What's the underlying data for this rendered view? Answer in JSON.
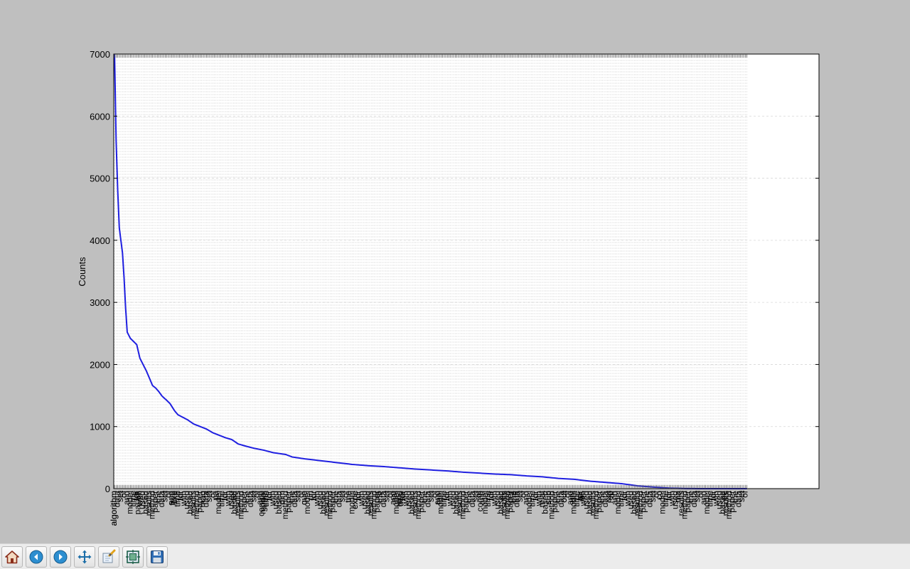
{
  "toolbar": {
    "buttons": [
      {
        "name": "home-button",
        "icon": "home-icon"
      },
      {
        "name": "back-button",
        "icon": "back-arrow-icon"
      },
      {
        "name": "forward-button",
        "icon": "forward-arrow-icon"
      },
      {
        "name": "pan-button",
        "icon": "pan-arrows-icon"
      },
      {
        "name": "zoom-button",
        "icon": "zoom-rect-icon"
      },
      {
        "name": "configure-subplots-button",
        "icon": "subplots-icon"
      },
      {
        "name": "save-button",
        "icon": "save-disk-icon"
      }
    ]
  },
  "colors": {
    "line": "#1f1fe0",
    "figure_background": "#bfbfbf",
    "axes_background": "#ffffff",
    "grid": "#d8d8d8"
  },
  "chart_data": {
    "type": "line",
    "xlabel": "",
    "ylabel": "Counts",
    "ylim": [
      0,
      7000
    ],
    "yticks": [
      0,
      1000,
      2000,
      3000,
      4000,
      5000,
      6000,
      7000
    ],
    "grid": true,
    "n_categories": 400,
    "x_extent_categories": 445,
    "visible_tick_labels": [
      {
        "index": 0,
        "text": "algorithm"
      },
      {
        "index": 15,
        "text": "paradi"
      },
      {
        "index": 37,
        "text": "freq"
      },
      {
        "index": 38,
        "text": "like"
      },
      {
        "index": 56,
        "text": "mag"
      },
      {
        "index": 64,
        "text": "pa"
      },
      {
        "index": 75,
        "text": "ref"
      },
      {
        "index": 93,
        "text": "compo"
      },
      {
        "index": 95,
        "text": "subm"
      },
      {
        "index": 106,
        "text": "dim"
      },
      {
        "index": 120,
        "text": "que"
      },
      {
        "index": 124,
        "text": "un"
      },
      {
        "index": 148,
        "text": "the"
      },
      {
        "index": 152,
        "text": "expe"
      },
      {
        "index": 167,
        "text": "lo"
      },
      {
        "index": 177,
        "text": "cat"
      },
      {
        "index": 181,
        "text": "desi"
      },
      {
        "index": 205,
        "text": "feel"
      },
      {
        "index": 231,
        "text": "comp"
      },
      {
        "index": 237,
        "text": "n"
      },
      {
        "index": 245,
        "text": "eu"
      },
      {
        "index": 249,
        "text": "beg"
      },
      {
        "index": 253,
        "text": "the"
      },
      {
        "index": 270,
        "text": "relat"
      },
      {
        "index": 274,
        "text": "sub"
      },
      {
        "index": 284,
        "text": "out"
      },
      {
        "index": 289,
        "text": "unt"
      },
      {
        "index": 295,
        "text": "dis"
      },
      {
        "index": 313,
        "text": "rep"
      },
      {
        "index": 344,
        "text": "co"
      },
      {
        "index": 356,
        "text": "ma"
      },
      {
        "index": 385,
        "text": "de"
      }
    ],
    "series": [
      {
        "values_keypoints": [
          [
            0,
            7000
          ],
          [
            1,
            5600
          ],
          [
            2,
            4800
          ],
          [
            3,
            4200
          ],
          [
            5,
            3800
          ],
          [
            6,
            3400
          ],
          [
            7,
            2900
          ],
          [
            8,
            2520
          ],
          [
            10,
            2420
          ],
          [
            12,
            2370
          ],
          [
            14,
            2320
          ],
          [
            16,
            2100
          ],
          [
            18,
            2000
          ],
          [
            20,
            1900
          ],
          [
            22,
            1780
          ],
          [
            24,
            1660
          ],
          [
            26,
            1620
          ],
          [
            28,
            1560
          ],
          [
            30,
            1490
          ],
          [
            33,
            1420
          ],
          [
            35,
            1370
          ],
          [
            38,
            1250
          ],
          [
            40,
            1190
          ],
          [
            43,
            1150
          ],
          [
            46,
            1110
          ],
          [
            50,
            1040
          ],
          [
            54,
            1000
          ],
          [
            58,
            960
          ],
          [
            62,
            900
          ],
          [
            66,
            860
          ],
          [
            70,
            820
          ],
          [
            74,
            790
          ],
          [
            78,
            720
          ],
          [
            82,
            690
          ],
          [
            88,
            650
          ],
          [
            94,
            620
          ],
          [
            100,
            580
          ],
          [
            108,
            550
          ],
          [
            112,
            510
          ],
          [
            120,
            480
          ],
          [
            130,
            450
          ],
          [
            140,
            420
          ],
          [
            150,
            390
          ],
          [
            160,
            370
          ],
          [
            170,
            355
          ],
          [
            180,
            335
          ],
          [
            190,
            315
          ],
          [
            200,
            300
          ],
          [
            210,
            285
          ],
          [
            220,
            265
          ],
          [
            230,
            250
          ],
          [
            240,
            235
          ],
          [
            250,
            225
          ],
          [
            260,
            205
          ],
          [
            270,
            190
          ],
          [
            280,
            165
          ],
          [
            290,
            150
          ],
          [
            300,
            120
          ],
          [
            310,
            100
          ],
          [
            320,
            80
          ],
          [
            330,
            45
          ],
          [
            340,
            25
          ],
          [
            350,
            8
          ],
          [
            360,
            2
          ],
          [
            370,
            0
          ],
          [
            399,
            0
          ]
        ]
      }
    ]
  }
}
